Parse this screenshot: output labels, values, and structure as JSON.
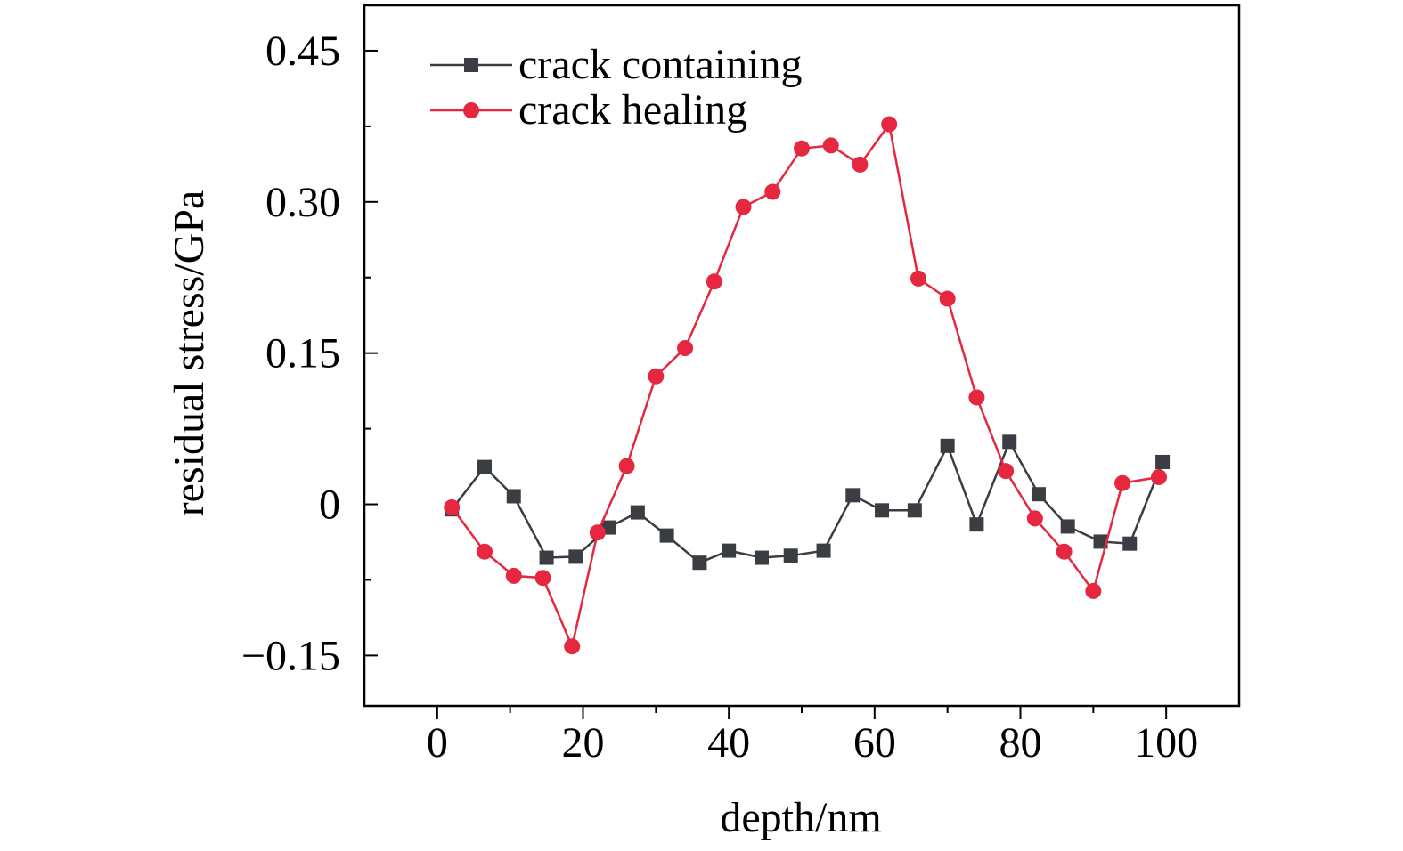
{
  "chart_data": {
    "type": "line",
    "title": "",
    "xlabel": "depth/nm",
    "ylabel": "residual stress/GPa",
    "xlim": [
      -10,
      110
    ],
    "ylim": [
      -0.2,
      0.495
    ],
    "xticks": [
      0,
      20,
      40,
      60,
      80,
      100
    ],
    "xtick_labels": [
      "0",
      "20",
      "40",
      "60",
      "80",
      "100"
    ],
    "yticks": [
      -0.15,
      0,
      0.15,
      0.3,
      0.45
    ],
    "ytick_labels": [
      "−0.15",
      "0",
      "0.15",
      "0.30",
      "0.45"
    ],
    "grid": false,
    "legend_position": "top-left",
    "series": [
      {
        "name": "crack containing",
        "color": "#3a3d42",
        "marker": "square",
        "x": [
          2,
          6.5,
          10.5,
          15,
          19,
          23.5,
          27.5,
          31.5,
          36,
          40,
          44.5,
          48.5,
          53,
          57,
          61,
          65.5,
          70,
          74,
          78.5,
          82.5,
          86.5,
          91,
          95,
          99.5
        ],
        "y": [
          -0.005,
          0.037,
          0.008,
          -0.053,
          -0.052,
          -0.023,
          -0.008,
          -0.031,
          -0.058,
          -0.046,
          -0.053,
          -0.051,
          -0.046,
          0.009,
          -0.006,
          -0.006,
          0.058,
          -0.02,
          0.062,
          0.01,
          -0.022,
          -0.037,
          -0.039,
          0.042
        ]
      },
      {
        "name": "crack healing",
        "color": "#e5273f",
        "marker": "circle",
        "x": [
          2,
          6.5,
          10.5,
          14.5,
          18.5,
          22,
          26,
          30,
          34,
          38,
          42,
          46,
          50,
          54,
          58,
          62,
          66,
          70,
          74,
          78,
          82,
          86,
          90,
          94,
          99
        ],
        "y": [
          -0.003,
          -0.047,
          -0.071,
          -0.073,
          -0.141,
          -0.028,
          0.038,
          0.127,
          0.155,
          0.221,
          0.295,
          0.31,
          0.353,
          0.356,
          0.337,
          0.377,
          0.224,
          0.204,
          0.106,
          0.033,
          -0.014,
          -0.047,
          -0.086,
          0.021,
          0.027
        ]
      }
    ]
  }
}
